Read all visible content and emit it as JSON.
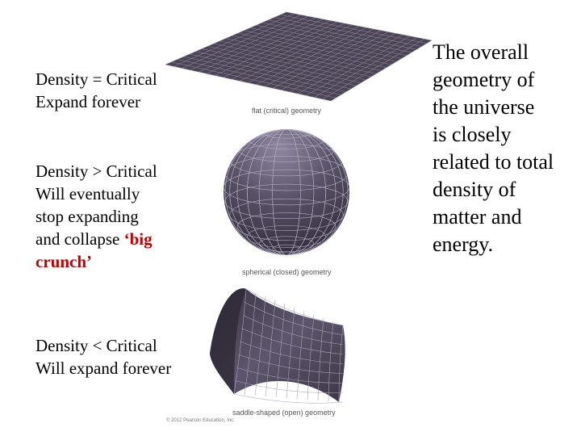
{
  "slide": {
    "flat": {
      "line1": "Density = Critical",
      "line2": "Expand forever",
      "caption": "flat (critical) geometry"
    },
    "closed": {
      "line1": "Density > Critical",
      "line2": "Will eventually",
      "line3": "stop expanding",
      "line4_prefix": "and collapse ",
      "line4_highlight": "‘big",
      "line5_highlight": "crunch’",
      "caption": "spherical (closed) geometry"
    },
    "open": {
      "line1": "Density < Critical",
      "line2": "Will expand forever",
      "caption": "saddle-shaped (open) geometry"
    },
    "copyright": "© 2012 Pearson Education, Inc.",
    "statement": {
      "lines": [
        "The overall",
        "geometry of",
        "the universe",
        "is closely",
        "related to total",
        "density of",
        "matter and",
        "energy."
      ]
    },
    "colors": {
      "surface": "#4a4454",
      "grid": "#9a94a8",
      "highlight": "#c00000"
    }
  }
}
